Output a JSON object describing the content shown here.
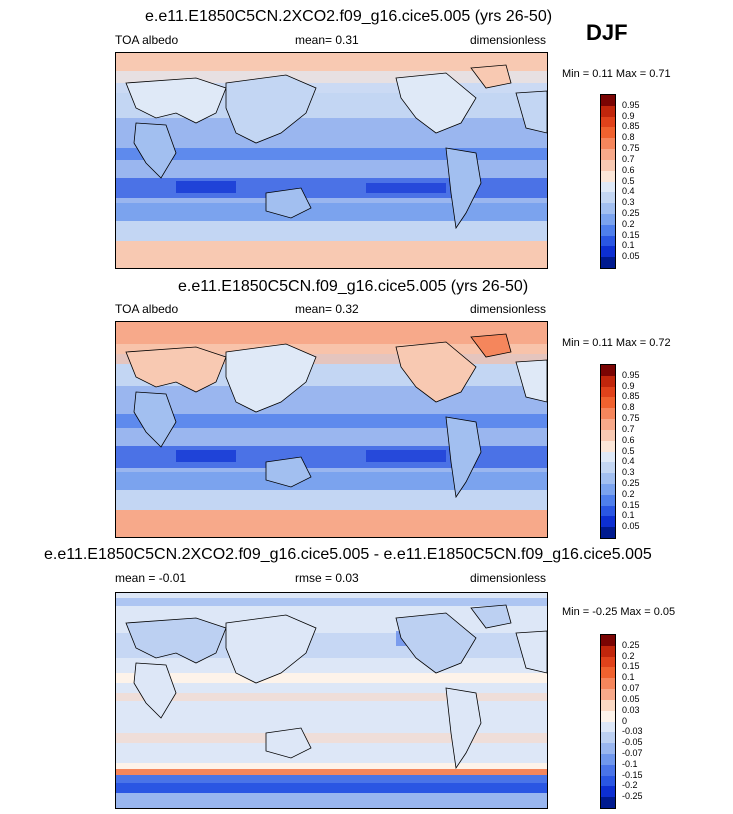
{
  "season": "DJF",
  "panels": [
    {
      "title": "e.e11.E1850C5CN.2XCO2.f09_g16.cice5.005 (yrs 26-50)",
      "left": "TOA albedo",
      "center": "mean=   0.31",
      "right": "dimensionless",
      "minmax": "Min =   0.11 Max =   0.71",
      "colorbar": {
        "labels": [
          "0.95",
          "0.9",
          "0.85",
          "0.8",
          "0.75",
          "0.7",
          "0.6",
          "0.5",
          "0.4",
          "0.3",
          "0.25",
          "0.2",
          "0.15",
          "0.1",
          "0.05"
        ],
        "colors": [
          "#7a0403",
          "#c1260c",
          "#e0421b",
          "#f0622f",
          "#f5865c",
          "#f7a98a",
          "#f8c9b2",
          "#fbe6d8",
          "#dfe9f7",
          "#c3d6f3",
          "#a2bff0",
          "#7ba3ee",
          "#4f7fec",
          "#2a56e3",
          "#0d2fd2",
          "#001a8f"
        ]
      }
    },
    {
      "title": "e.e11.E1850C5CN.f09_g16.cice5.005 (yrs 26-50)",
      "left": "TOA albedo",
      "center": "mean=   0.32",
      "right": "dimensionless",
      "minmax": "Min =   0.11 Max =   0.72",
      "colorbar": {
        "labels": [
          "0.95",
          "0.9",
          "0.85",
          "0.8",
          "0.75",
          "0.7",
          "0.6",
          "0.5",
          "0.4",
          "0.3",
          "0.25",
          "0.2",
          "0.15",
          "0.1",
          "0.05"
        ],
        "colors": [
          "#7a0403",
          "#c1260c",
          "#e0421b",
          "#f0622f",
          "#f5865c",
          "#f7a98a",
          "#f8c9b2",
          "#fbe6d8",
          "#dfe9f7",
          "#c3d6f3",
          "#a2bff0",
          "#7ba3ee",
          "#4f7fec",
          "#2a56e3",
          "#0d2fd2",
          "#001a8f"
        ]
      }
    },
    {
      "title": "e.e11.E1850C5CN.2XCO2.f09_g16.cice5.005 - e.e11.E1850C5CN.f09_g16.cice5.005",
      "left": "mean =  -0.01",
      "center": "rmse =   0.03",
      "right": "dimensionless",
      "minmax": "Min =  -0.25 Max =   0.05",
      "colorbar": {
        "labels": [
          "0.25",
          "0.2",
          "0.15",
          "0.1",
          "0.07",
          "0.05",
          "0.03",
          "0",
          "-0.03",
          "-0.05",
          "-0.07",
          "-0.1",
          "-0.15",
          "-0.2",
          "-0.25"
        ],
        "colors": [
          "#7a0403",
          "#c1260c",
          "#e0421b",
          "#f0622f",
          "#f5865c",
          "#f7a98a",
          "#fbd9c4",
          "#fdf3ea",
          "#dde7f7",
          "#bcd0f2",
          "#99b6ef",
          "#7097ec",
          "#4a74e8",
          "#2a56e3",
          "#0d2fd2",
          "#001a8f"
        ]
      }
    }
  ]
}
